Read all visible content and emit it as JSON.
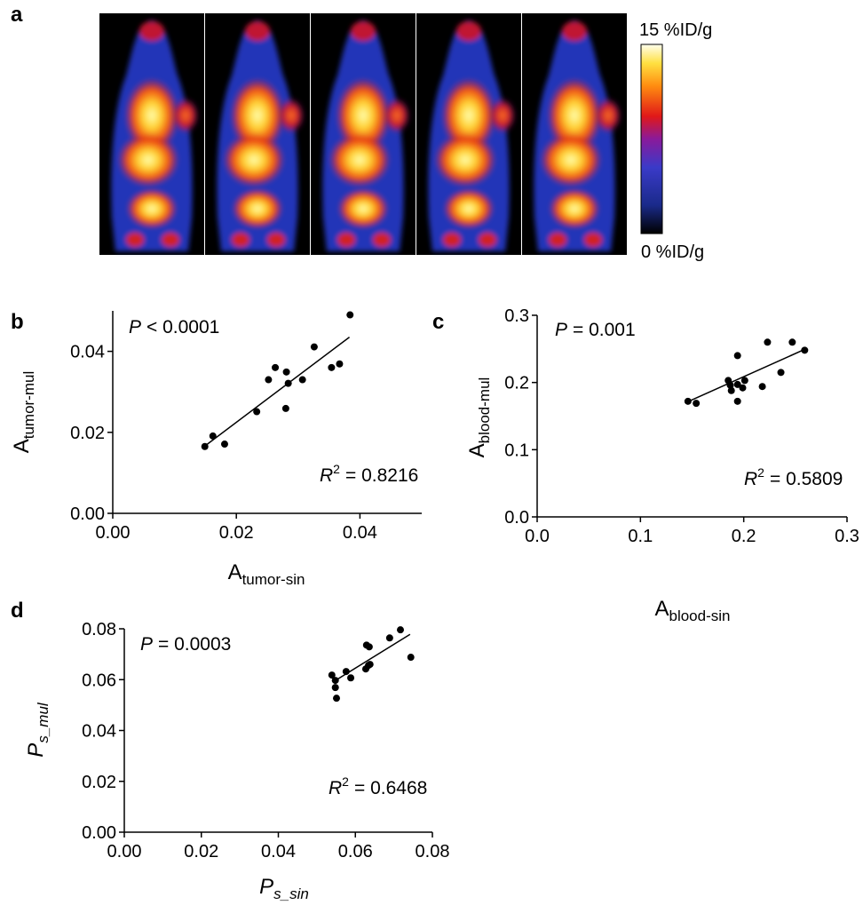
{
  "chart_data": [
    {
      "type": "image",
      "panel": "a",
      "colorbar_max_label": "15 %ID/g",
      "colorbar_min_label": "0 %ID/g"
    },
    {
      "type": "scatter",
      "panel": "b",
      "xlabel": {
        "main": "A",
        "sub": "tumor-sin"
      },
      "ylabel": {
        "main": "A",
        "sub": "tumor-mul"
      },
      "p_annotation": {
        "symbol": "P",
        "text": "< 0.0001"
      },
      "r2_annotation": {
        "symbol": "R",
        "power": "2",
        "text": "= 0.8216"
      },
      "xlim": [
        0,
        0.05
      ],
      "ylim": [
        0,
        0.05
      ],
      "xticks": [
        {
          "value": 0,
          "label": "0.00"
        },
        {
          "value": 0.02,
          "label": "0.02"
        },
        {
          "value": 0.04,
          "label": "0.04"
        }
      ],
      "yticks": [
        {
          "value": 0,
          "label": "0.00"
        },
        {
          "value": 0.02,
          "label": "0.02"
        },
        {
          "value": 0.04,
          "label": "0.04"
        }
      ],
      "color": "#000000",
      "x": [
        0.0149,
        0.0162,
        0.0181,
        0.0233,
        0.0252,
        0.0263,
        0.0281,
        0.028,
        0.0284,
        0.0307,
        0.0326,
        0.0354,
        0.0367,
        0.0384
      ],
      "values": [
        0.0165,
        0.0191,
        0.0171,
        0.0251,
        0.033,
        0.036,
        0.0349,
        0.0259,
        0.0321,
        0.033,
        0.0411,
        0.036,
        0.0369,
        0.049
      ],
      "fit": {
        "x": [
          0.0148,
          0.0383
        ],
        "y": [
          0.0165,
          0.0435
        ]
      }
    },
    {
      "type": "scatter",
      "panel": "c",
      "xlabel": {
        "main": "A",
        "sub": "blood-sin"
      },
      "ylabel": {
        "main": "A",
        "sub": "blood-mul"
      },
      "p_annotation": {
        "symbol": "P",
        "text": "= 0.001"
      },
      "r2_annotation": {
        "symbol": "R",
        "power": "2",
        "text": "= 0.5809"
      },
      "xlim": [
        0,
        0.3
      ],
      "ylim": [
        0,
        0.3
      ],
      "xticks": [
        {
          "value": 0,
          "label": "0.0"
        },
        0.1,
        0.2,
        0.3
      ],
      "yticks": [
        {
          "value": 0,
          "label": "0.0"
        },
        0.1,
        0.2,
        0.3
      ],
      "color": "#000000",
      "x": [
        0.146,
        0.154,
        0.185,
        0.187,
        0.188,
        0.194,
        0.194,
        0.194,
        0.199,
        0.201,
        0.218,
        0.223,
        0.236,
        0.247,
        0.259
      ],
      "values": [
        0.172,
        0.169,
        0.203,
        0.196,
        0.188,
        0.24,
        0.197,
        0.172,
        0.192,
        0.203,
        0.194,
        0.26,
        0.215,
        0.26,
        0.248
      ],
      "fit": {
        "x": [
          0.144,
          0.26
        ],
        "y": [
          0.17,
          0.25
        ]
      }
    },
    {
      "type": "scatter",
      "panel": "d",
      "label_italic": true,
      "xlabel": {
        "main": "P",
        "sub": "s_sin"
      },
      "ylabel": {
        "main": "P",
        "sub": "s_mul"
      },
      "p_annotation": {
        "symbol": "P",
        "text": "= 0.0003"
      },
      "r2_annotation": {
        "symbol": "R",
        "power": "2",
        "text": "= 0.6468"
      },
      "xlim": [
        0,
        0.08
      ],
      "ylim": [
        0,
        0.08
      ],
      "xticks": [
        {
          "value": 0,
          "label": "0.00"
        },
        0.02,
        0.04,
        0.06,
        0.08
      ],
      "yticks": [
        {
          "value": 0,
          "label": "0.00"
        },
        0.02,
        0.04,
        0.06,
        0.08
      ],
      "color": "#000000",
      "x": [
        0.0539,
        0.0548,
        0.0548,
        0.0551,
        0.0576,
        0.0588,
        0.0627,
        0.0629,
        0.0634,
        0.0636,
        0.0638,
        0.0689,
        0.0717,
        0.0744
      ],
      "values": [
        0.0618,
        0.0597,
        0.0569,
        0.0527,
        0.0632,
        0.0607,
        0.0642,
        0.0736,
        0.0656,
        0.0729,
        0.066,
        0.0764,
        0.0796,
        0.0688
      ],
      "fit": {
        "x": [
          0.0541,
          0.0742
        ],
        "y": [
          0.059,
          0.0778
        ]
      }
    }
  ]
}
